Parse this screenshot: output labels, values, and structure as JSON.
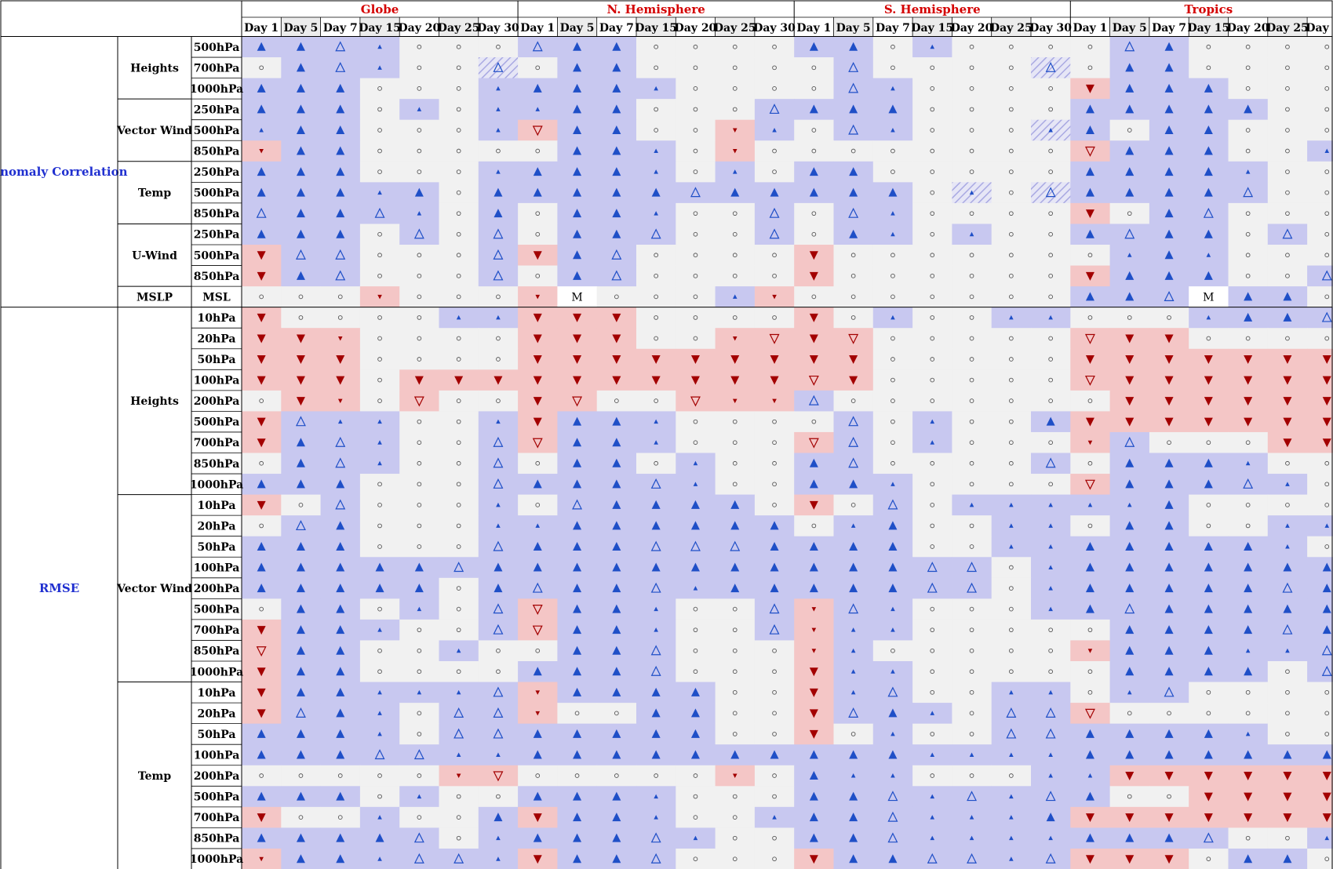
{
  "legend_codes": {
    "B": "large filled up triangle",
    "b": "small filled up triangle",
    "T": "open up triangle",
    "R": "large filled down triangle",
    "r": "small filled down triangle",
    "V": "open down triangle",
    "o": "small circle",
    "M": "M",
    "h": "hatched open up triangle",
    "k": "hatched small up triangle"
  },
  "colors": {
    "better_bg": "#c8c8f0",
    "worse_bg": "#f4c6c6",
    "neutral_bg": "#f1f1f1",
    "better_mark": "#1f4fc7",
    "worse_mark": "#a30000",
    "region_text": "#d40000",
    "group_text": "#1f2fd0"
  },
  "chart_data": {
    "type": "table",
    "regions": [
      "Globe",
      "N. Hemisphere",
      "S. Hemisphere",
      "Tropics"
    ],
    "days": [
      "Day 1",
      "Day 5",
      "Day 7",
      "Day 15",
      "Day 20",
      "Day 25",
      "Day 30"
    ],
    "groups": [
      {
        "name": "Anomaly Correlation",
        "variables": [
          {
            "name": "Heights",
            "rows": [
              {
                "level": "500hPa",
                "cells": [
                  "BBTboo",
                  "TBBooo",
                  "BBoboo",
                  "oTBoooo"
                ]
              },
              {
                "level": "700hPa",
                "cells": [
                  "oBTbooh",
                  "oBBoooo",
                  "oTooooh",
                  "oBBoooo"
                ]
              },
              {
                "level": "1000hPa",
                "cells": [
                  "BBBooob",
                  "BBBbooo",
                  "oTbooook",
                  "RBBBooo"
                ]
              }
            ]
          },
          {
            "name": "Vector Wind",
            "rows": [
              {
                "level": "250hPa",
                "cells": [
                  "BBBobob",
                  "bBBoooT",
                  "BBBooooo",
                  "BBBBBoo"
                ]
              },
              {
                "level": "500hPa",
                "cells": [
                  "bBBooob",
                  "VBBoorb",
                  "oTboook",
                  "BoBBooo"
                ]
              },
              {
                "level": "850hPa",
                "cells": [
                  "rBBoooo",
                  "oBBboro",
                  "oooooooo",
                  "VBBBoob"
                ]
              }
            ]
          },
          {
            "name": "Temp",
            "rows": [
              {
                "level": "250hPa",
                "cells": [
                  "BBBooob",
                  "BBBbobo",
                  "BBooooo",
                  "BBBBboo"
                ]
              },
              {
                "level": "500hPa",
                "cells": [
                  "BBBbBoB",
                  "BBBBTBB",
                  "BBBokoh",
                  "BBBBToo"
                ]
              },
              {
                "level": "850hPa",
                "cells": [
                  "TBBTboB",
                  "oBBbooT",
                  "oTbooooT",
                  "RoBTooob"
                ]
              }
            ]
          },
          {
            "name": "U-Wind",
            "rows": [
              {
                "level": "250hPa",
                "cells": [
                  "BBBoToT",
                  "oBBTooT",
                  "oBbobooo",
                  "BTBBoTo"
                ]
              },
              {
                "level": "500hPa",
                "cells": [
                  "RTTooOT",
                  "RBTooooT",
                  "Rooooooh",
                  "obBbooo"
                ]
              },
              {
                "level": "850hPa",
                "cells": [
                  "RBToooT",
                  "oBToooo",
                  "Rooooooh",
                  "RBBBooT"
                ]
              }
            ]
          },
          {
            "name": "MSLP",
            "rows": [
              {
                "level": "MSL",
                "cells": [
                  "oooroo o",
                  "rMooobr",
                  "oooooooo",
                  "BBTMBBo"
                ]
              }
            ]
          }
        ]
      },
      {
        "name": "RMSE",
        "variables": [
          {
            "name": "Heights",
            "rows": [
              {
                "level": "10hPa",
                "cells": [
                  "Roooobb",
                  "RRRoooo",
                  "Rob oobb",
                  "ooobBBTB"
                ]
              },
              {
                "level": "20hPa",
                "cells": [
                  "RRroooo",
                  "RRRoorV",
                  "RVoooooo",
                  "VRRoooo"
                ]
              },
              {
                "level": "50hPa",
                "cells": [
                  "RRRoooo",
                  "RRRRRRR",
                  "RRoooooo",
                  "RRRRRRR"
                ]
              },
              {
                "level": "100hPa",
                "cells": [
                  "RRRoRRR",
                  "RRRRRRR",
                  "VRoooooo",
                  "VRRRRRR"
                ]
              },
              {
                "level": "200hPa",
                "cells": [
                  "oRroVoo",
                  "RVooVrr",
                  "Toootoob",
                  "oRRRRRR"
                ]
              },
              {
                "level": "500hPa",
                "cells": [
                  "RTbboob",
                  "RBBbooo",
                  "oTobooB",
                  "RRRRRRR"
                ]
              },
              {
                "level": "700hPa",
                "cells": [
                  "RBTbooT",
                  "VBBbooo",
                  "VToboooT",
                  "rToooRR"
                ]
              },
              {
                "level": "850hPa",
                "cells": [
                  "oBTbooT",
                  "oBBobooo",
                  "BTooooT",
                  "oBBBboo"
                ]
              },
              {
                "level": "1000hPa",
                "cells": [
                  "BBBoooT",
                  "BBBTbooo",
                  "BBboooob",
                  "VBBBTbo"
                ]
              }
            ]
          },
          {
            "name": "Vector Wind",
            "rows": [
              {
                "level": "10hPa",
                "cells": [
                  "RoTooob",
                  "oTBBBBo",
                  "RoTobbb",
                  "bbBoooo"
                ]
              },
              {
                "level": "20hPa",
                "cells": [
                  "oTBooob",
                  "bBBBBBB",
                  "obBoobb",
                  "oBBoobb"
                ]
              },
              {
                "level": "50hPa",
                "cells": [
                  "BBBoooT",
                  "BBBTTTB",
                  "BBBoobb",
                  "BBBBBbo"
                ]
              },
              {
                "level": "100hPa",
                "cells": [
                  "BBBBBTB",
                  "BBBBBBB",
                  "BBBTTob",
                  "BBBBBBB"
                ]
              },
              {
                "level": "200hPa",
                "cells": [
                  "BBBBBoB",
                  "TBBTbBB",
                  "BBBTTob",
                  "BBBBBTB"
                ]
              },
              {
                "level": "500hPa",
                "cells": [
                  "oBBoboT",
                  "VBBbooT",
                  "rTbooob",
                  "BTBBBBB"
                ]
              },
              {
                "level": "700hPa",
                "cells": [
                  "RBBbooT",
                  "VBBboo T",
                  "rbboooo",
                  "oBBBBTB"
                ]
              },
              {
                "level": "850hPa",
                "cells": [
                  "VBBoob",
                  "oBBTooo",
                  "rbooooo",
                  "rBBBbbT"
                ]
              },
              {
                "level": "1000hPa",
                "cells": [
                  "RBBoooo",
                  "BBBTooo",
                  "Rbbooooo",
                  "oBBBBoT"
                ]
              }
            ]
          },
          {
            "name": "Temp",
            "rows": [
              {
                "level": "10hPa",
                "cells": [
                  "RBBbbbT",
                  "rBBBBoo",
                  "RbToobbT",
                  "obToooo"
                ]
              },
              {
                "level": "20hPa",
                "cells": [
                  "RTBboTT",
                  "rooBBoo",
                  "RTBboTT",
                  "Voooooo"
                ]
              },
              {
                "level": "50hPa",
                "cells": [
                  "BBBboTT",
                  "BBBBBoo",
                  "RobooTT",
                  "BBBBboo"
                ]
              },
              {
                "level": "100hPa",
                "cells": [
                  "BBBTTbb",
                  "BBBBBBB",
                  "BBBbbbb",
                  "BBBBBBB"
                ]
              },
              {
                "level": "200hPa",
                "cells": [
                  "ooooorVo",
                  "ooooorob",
                  "Bbbooob",
                  "bRRRRRR"
                ]
              },
              {
                "level": "500hPa",
                "cells": [
                  "BBBoboo",
                  "BBBbooo",
                  "BBTbTbT",
                  "BooRRRR"
                ]
              },
              {
                "level": "700hPa",
                "cells": [
                  "RoobooB",
                  "RBBboob",
                  "BBTbbbB",
                  "RRRRRRR"
                ]
              },
              {
                "level": "850hPa",
                "cells": [
                  "BBBBTob",
                  "BBBTboo",
                  "BBTbbbb",
                  "BBBToob"
                ]
              },
              {
                "level": "1000hPa",
                "cells": [
                  "rBBbTTb",
                  "RBBTooo",
                  "RBBTTbT",
                  "RRRoBBo"
                ]
              }
            ]
          }
        ]
      }
    ]
  }
}
